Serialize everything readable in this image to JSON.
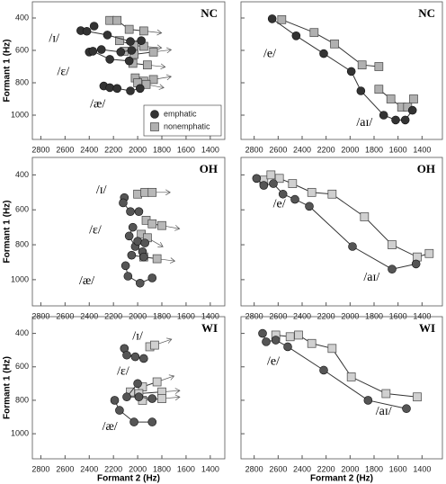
{
  "chart_data": [
    {
      "type": "scatter",
      "label": "NC",
      "y_label": "Formant 1 (Hz)",
      "xlim": [
        2870,
        1280
      ],
      "ylim": [
        300,
        1150
      ],
      "xticks": [
        2800,
        2600,
        2400,
        2200,
        2000,
        1800,
        1600,
        1400
      ],
      "yticks": [
        400,
        600,
        800,
        1000
      ],
      "arrows": true,
      "emphatic_color": "#333333",
      "nonemphatic_color": "#b0b0b0",
      "legend": {
        "corner": "lower right",
        "entries": [
          {
            "name": "emphatic",
            "color": "#333333",
            "marker": "circle"
          },
          {
            "name": "nonemphatic",
            "color": "#b0b0b0",
            "marker": "square"
          }
        ]
      },
      "emphatic": [
        {
          "x": [
            2470,
            2420,
            2250,
            2060,
            1970
          ],
          "y": [
            478,
            482,
            505,
            545,
            540
          ]
        },
        {
          "x": [
            2360
          ],
          "y": [
            450
          ]
        },
        {
          "x": [
            2400,
            2370,
            2230,
            2070
          ],
          "y": [
            610,
            605,
            655,
            665
          ]
        },
        {
          "x": [
            2300,
            2140,
            2050
          ],
          "y": [
            595,
            610,
            600
          ]
        },
        {
          "x": [
            2280,
            2230,
            2170,
            2060,
            1980
          ],
          "y": [
            820,
            830,
            835,
            850,
            835
          ]
        }
      ],
      "nonemphatic": [
        {
          "x": [
            2230,
            2170,
            2070,
            1950
          ],
          "y": [
            415,
            415,
            470,
            480
          ]
        },
        {
          "x": [
            2150,
            2030,
            1950
          ],
          "y": [
            540,
            570,
            575
          ]
        },
        {
          "x": [
            2110,
            2030,
            1870
          ],
          "y": [
            605,
            625,
            610
          ]
        },
        {
          "x": [
            2040,
            1920
          ],
          "y": [
            680,
            690
          ]
        },
        {
          "x": [
            2020,
            1950,
            1870
          ],
          "y": [
            770,
            790,
            780
          ]
        },
        {
          "x": [
            2000,
            1930
          ],
          "y": [
            800,
            810
          ]
        }
      ],
      "annotations": [
        {
          "text": "/ɪ/",
          "at": [
            2690,
            530
          ]
        },
        {
          "text": "/ɛ/",
          "at": [
            2615,
            735
          ]
        },
        {
          "text": "/æ/",
          "at": [
            2330,
            935
          ]
        }
      ]
    },
    {
      "type": "scatter",
      "label": "NC",
      "xlim": [
        2910,
        1230
      ],
      "ylim": [
        300,
        1150
      ],
      "xticks": [
        2800,
        2600,
        2400,
        2200,
        2000,
        1800,
        1600,
        1400
      ],
      "yticks": [
        400,
        600,
        800,
        1000
      ],
      "arrows": false,
      "emphatic_color": "#333333",
      "nonemphatic_color": "#b0b0b0",
      "emphatic": [
        {
          "x": [
            2650,
            2450,
            2220,
            1990,
            1910,
            1720,
            1620,
            1540,
            1480
          ],
          "y": [
            405,
            510,
            620,
            730,
            850,
            1000,
            1030,
            1030,
            970
          ]
        }
      ],
      "nonemphatic": [
        {
          "x": [
            2570,
            2300,
            2130,
            1900,
            1760
          ],
          "y": [
            410,
            490,
            560,
            690,
            700
          ]
        },
        {
          "x": [
            1760,
            1660,
            1570,
            1520,
            1470
          ],
          "y": [
            840,
            900,
            950,
            950,
            900
          ]
        }
      ],
      "annotations": [
        {
          "text": "/e/",
          "at": [
            2670,
            625
          ]
        },
        {
          "text": "/aɪ/",
          "at": [
            1880,
            1050
          ]
        }
      ]
    },
    {
      "type": "scatter",
      "label": "OH",
      "y_label": "Formant 1 (Hz)",
      "xlim": [
        2870,
        1280
      ],
      "ylim": [
        300,
        1150
      ],
      "xticks": [
        2800,
        2600,
        2400,
        2200,
        2000,
        1800,
        1600,
        1400
      ],
      "yticks": [
        400,
        600,
        800,
        1000
      ],
      "arrows": true,
      "emphatic_color": "#555555",
      "nonemphatic_color": "#b8b8b8",
      "emphatic": [
        {
          "x": [
            2110,
            2120,
            2060,
            1990
          ],
          "y": [
            530,
            560,
            610,
            610
          ]
        },
        {
          "x": [
            2040,
            2070,
            2020,
            1960
          ],
          "y": [
            700,
            750,
            810,
            840
          ]
        },
        {
          "x": [
            2000,
            1940
          ],
          "y": [
            780,
            790
          ]
        },
        {
          "x": [
            2100,
            2080,
            1980,
            1880
          ],
          "y": [
            920,
            980,
            1020,
            990
          ]
        },
        {
          "x": [
            2050,
            1950
          ],
          "y": [
            860,
            870
          ]
        }
      ],
      "nonemphatic": [
        {
          "x": [
            2000,
            1940,
            1880
          ],
          "y": [
            510,
            500,
            500
          ]
        },
        {
          "x": [
            1930,
            1880,
            1800
          ],
          "y": [
            660,
            680,
            690
          ]
        },
        {
          "x": [
            1970,
            1920
          ],
          "y": [
            740,
            760
          ]
        },
        {
          "x": [
            1950,
            1840
          ],
          "y": [
            870,
            880
          ]
        }
      ],
      "annotations": [
        {
          "text": "/ɪ/",
          "at": [
            2300,
            490
          ]
        },
        {
          "text": "/ɛ/",
          "at": [
            2350,
            720
          ]
        },
        {
          "text": "/æ/",
          "at": [
            2420,
            1010
          ]
        }
      ]
    },
    {
      "type": "scatter",
      "label": "OH",
      "xlim": [
        2910,
        1230
      ],
      "ylim": [
        300,
        1150
      ],
      "xticks": [
        2800,
        2600,
        2400,
        2200,
        2000,
        1800,
        1600,
        1400
      ],
      "yticks": [
        400,
        600,
        800,
        1000
      ],
      "arrows": false,
      "emphatic_color": "#555555",
      "nonemphatic_color": "#d0d0d0",
      "emphatic": [
        {
          "x": [
            2780,
            2720,
            2640,
            2560,
            2460,
            2340,
            1980,
            1650,
            1450
          ],
          "y": [
            420,
            460,
            450,
            510,
            540,
            580,
            810,
            940,
            910
          ]
        }
      ],
      "nonemphatic": [
        {
          "x": [
            2720,
            2660,
            2590,
            2480,
            2320,
            2150,
            1880,
            1650,
            1440,
            1340
          ],
          "y": [
            430,
            400,
            420,
            450,
            500,
            510,
            640,
            800,
            870,
            850
          ]
        }
      ],
      "annotations": [
        {
          "text": "/e/",
          "at": [
            2590,
            570
          ]
        },
        {
          "text": "/aɪ/",
          "at": [
            1820,
            990
          ]
        }
      ]
    },
    {
      "type": "scatter",
      "label": "WI",
      "y_label": "Formant 1 (Hz)",
      "x_label": "Formant 2 (Hz)",
      "xlim": [
        2870,
        1280
      ],
      "ylim": [
        300,
        1150
      ],
      "xticks": [
        2800,
        2600,
        2400,
        2200,
        2000,
        1800,
        1600,
        1400
      ],
      "yticks": [
        400,
        600,
        800,
        1000
      ],
      "arrows": true,
      "emphatic_color": "#555555",
      "nonemphatic_color": "#d0d0d0",
      "emphatic": [
        {
          "x": [
            2110,
            2090,
            2020,
            1950
          ],
          "y": [
            490,
            530,
            540,
            550
          ]
        },
        {
          "x": [
            2000,
            2090,
            1990,
            1880
          ],
          "y": [
            700,
            780,
            780,
            790
          ]
        },
        {
          "x": [
            2190,
            2150,
            2030,
            1880
          ],
          "y": [
            800,
            860,
            930,
            930
          ]
        }
      ],
      "nonemphatic": [
        {
          "x": [
            1900,
            1860
          ],
          "y": [
            480,
            470
          ]
        },
        {
          "x": [
            1960,
            1840
          ],
          "y": [
            720,
            690
          ]
        },
        {
          "x": [
            1990,
            1800
          ],
          "y": [
            760,
            750
          ]
        },
        {
          "x": [
            2060,
            1960,
            1800
          ],
          "y": [
            750,
            800,
            790
          ]
        }
      ],
      "annotations": [
        {
          "text": "/ɪ/",
          "at": [
            2000,
            420
          ]
        },
        {
          "text": "/ɛ/",
          "at": [
            2120,
            630
          ]
        },
        {
          "text": "/æ/",
          "at": [
            2230,
            960
          ]
        }
      ]
    },
    {
      "type": "scatter",
      "label": "WI",
      "x_label": "Formant 2 (Hz)",
      "xlim": [
        2910,
        1230
      ],
      "ylim": [
        300,
        1150
      ],
      "xticks": [
        2800,
        2600,
        2400,
        2200,
        2000,
        1800,
        1600,
        1400
      ],
      "yticks": [
        400,
        600,
        800,
        1000
      ],
      "arrows": false,
      "emphatic_color": "#555555",
      "nonemphatic_color": "#d0d0d0",
      "emphatic": [
        {
          "x": [
            2730,
            2700,
            2620,
            2520,
            2220,
            1850,
            1530
          ],
          "y": [
            400,
            450,
            440,
            480,
            620,
            800,
            850
          ]
        }
      ],
      "nonemphatic": [
        {
          "x": [
            2620,
            2500,
            2430,
            2320,
            2150,
            1990,
            1700,
            1440
          ],
          "y": [
            410,
            420,
            410,
            460,
            490,
            660,
            760,
            780
          ]
        }
      ],
      "annotations": [
        {
          "text": "/e/",
          "at": [
            2640,
            570
          ]
        },
        {
          "text": "/aɪ/",
          "at": [
            1720,
            870
          ]
        }
      ]
    }
  ]
}
